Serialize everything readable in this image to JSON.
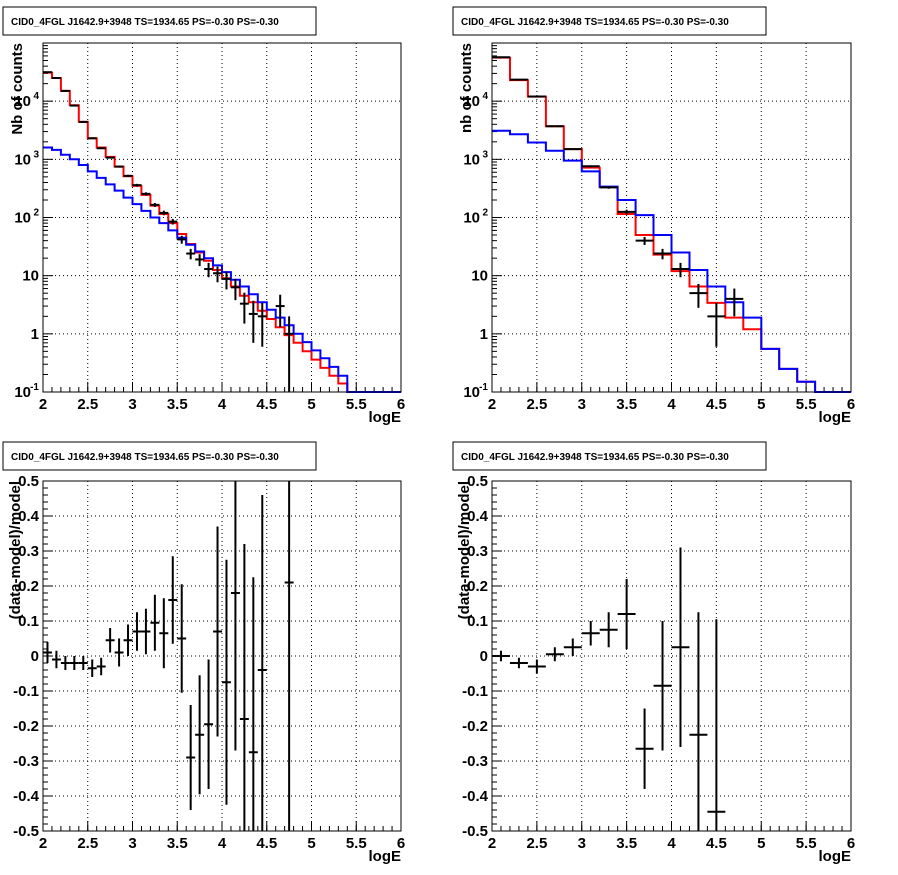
{
  "page": {
    "title_text": "CID0_4FGL J1642.9+3948 TS=1934.65 PS=-0.30 PS=-0.30"
  },
  "chart_data": [
    {
      "id": "counts-fine",
      "type": "line",
      "title": "CID0_4FGL J1642.9+3948 TS=1934.65 PS=-0.30 PS=-0.30",
      "xlabel": "logE",
      "ylabel": "Nb of counts",
      "xlim": [
        2,
        6
      ],
      "ylim": [
        0.1,
        100000
      ],
      "yscale": "log",
      "grid": true,
      "xticks": [
        "2",
        "2.5",
        "3",
        "3.5",
        "4",
        "4.5",
        "5",
        "5.5",
        "6"
      ],
      "yticks": [
        {
          "v": 0.1,
          "t": "10",
          "sup": "-1"
        },
        {
          "v": 1,
          "t": "1",
          "sup": ""
        },
        {
          "v": 10,
          "t": "10",
          "sup": ""
        },
        {
          "v": 100,
          "t": "10",
          "sup": "2"
        },
        {
          "v": 1000,
          "t": "10",
          "sup": "3"
        },
        {
          "v": 10000,
          "t": "10",
          "sup": "4"
        }
      ],
      "series": [
        {
          "color": "#ff0000",
          "style": "step",
          "bin_edges": [
            2,
            2.1,
            2.2,
            2.3,
            2.4,
            2.5,
            2.6,
            2.7,
            2.8,
            2.9,
            3.0,
            3.1,
            3.2,
            3.3,
            3.4,
            3.5,
            3.6,
            3.7,
            3.8,
            3.9,
            4.0,
            4.1,
            4.2,
            4.3,
            4.4,
            4.5,
            4.6,
            4.7,
            4.8,
            4.9,
            5.0,
            5.1,
            5.2,
            5.3,
            5.4,
            5.5,
            5.6,
            5.7,
            5.8,
            5.9,
            6.0
          ],
          "values": [
            31000,
            25000,
            15000,
            8500,
            4400,
            2300,
            1600,
            1100,
            750,
            510,
            350,
            245,
            160,
            115,
            80,
            52,
            35,
            25,
            18,
            12.5,
            9,
            6.5,
            4.5,
            3.5,
            2.5,
            1.8,
            1.3,
            0.95,
            0.7,
            0.5,
            0.36,
            0.26,
            0.19,
            0.14,
            0.1,
            0.1,
            0.1,
            0.1,
            0.1,
            0.1
          ]
        },
        {
          "color": "#0000ff",
          "style": "step",
          "bin_edges": [
            2,
            2.1,
            2.2,
            2.3,
            2.4,
            2.5,
            2.6,
            2.7,
            2.8,
            2.9,
            3.0,
            3.1,
            3.2,
            3.3,
            3.4,
            3.5,
            3.6,
            3.7,
            3.8,
            3.9,
            4.0,
            4.1,
            4.2,
            4.3,
            4.4,
            4.5,
            4.6,
            4.7,
            4.8,
            4.9,
            5.0,
            5.1,
            5.2,
            5.3,
            5.4,
            5.5,
            5.6,
            5.7,
            5.8,
            5.9,
            6.0
          ],
          "values": [
            1600,
            1450,
            1200,
            1000,
            800,
            620,
            480,
            370,
            290,
            220,
            170,
            130,
            100,
            80,
            60,
            45,
            34,
            26,
            20,
            15,
            11.5,
            8.5,
            6.5,
            4.8,
            3.5,
            2.6,
            1.9,
            1.4,
            1.0,
            0.72,
            0.52,
            0.38,
            0.27,
            0.19,
            0.1,
            0.1,
            0.1,
            0.1,
            0.1,
            0.1
          ]
        },
        {
          "color": "#000000",
          "style": "points",
          "x": [
            2.05,
            2.15,
            2.25,
            2.35,
            2.45,
            2.55,
            2.65,
            2.75,
            2.85,
            2.95,
            3.05,
            3.15,
            3.25,
            3.35,
            3.45,
            3.55,
            3.65,
            3.75,
            3.85,
            3.95,
            4.05,
            4.15,
            4.25,
            4.35,
            4.45,
            4.55,
            4.65,
            4.75
          ],
          "values": [
            31500,
            25000,
            15000,
            8400,
            4400,
            2300,
            1550,
            1070,
            750,
            520,
            360,
            255,
            165,
            120,
            85,
            42,
            24,
            19,
            13,
            11,
            8.8,
            6.3,
            3.3,
            2.2,
            2.0,
            0,
            3.0,
            1.0
          ],
          "errors": [
            178,
            158,
            122,
            92,
            66,
            48,
            39,
            33,
            27,
            23,
            19,
            16,
            13,
            11,
            9.2,
            6.5,
            4.9,
            4.4,
            3.6,
            3.3,
            3.0,
            2.5,
            1.8,
            1.5,
            1.4,
            0,
            1.7,
            1.0
          ]
        }
      ]
    },
    {
      "id": "counts-coarse",
      "type": "line",
      "title": "CID0_4FGL J1642.9+3948 TS=1934.65 PS=-0.30 PS=-0.30",
      "xlabel": "logE",
      "ylabel": "nb of counts",
      "xlim": [
        2,
        6
      ],
      "ylim": [
        0.1,
        100000
      ],
      "yscale": "log",
      "grid": true,
      "xticks": [
        "2",
        "2.5",
        "3",
        "3.5",
        "4",
        "4.5",
        "5",
        "5.5",
        "6"
      ],
      "yticks": [
        {
          "v": 0.1,
          "t": "10",
          "sup": "-1"
        },
        {
          "v": 1,
          "t": "1",
          "sup": ""
        },
        {
          "v": 10,
          "t": "10",
          "sup": ""
        },
        {
          "v": 100,
          "t": "10",
          "sup": "2"
        },
        {
          "v": 1000,
          "t": "10",
          "sup": "3"
        },
        {
          "v": 10000,
          "t": "10",
          "sup": "4"
        }
      ],
      "series": [
        {
          "color": "#ff0000",
          "style": "step",
          "bin_edges": [
            2,
            2.2,
            2.4,
            2.6,
            2.8,
            3.0,
            3.2,
            3.4,
            3.6,
            3.8,
            4.0,
            4.2,
            4.4,
            4.6,
            4.8,
            5.0,
            5.2,
            5.4,
            5.6,
            5.8,
            6.0
          ],
          "values": [
            56000,
            23000,
            12000,
            3700,
            1500,
            720,
            330,
            115,
            50,
            23,
            12,
            6.5,
            3.4,
            1.9,
            1.2,
            0.55,
            0.25,
            0.15,
            0.1,
            0.1
          ]
        },
        {
          "color": "#0000ff",
          "style": "step",
          "bin_edges": [
            2,
            2.2,
            2.4,
            2.6,
            2.8,
            3.0,
            3.2,
            3.4,
            3.6,
            3.8,
            4.0,
            4.2,
            4.4,
            4.6,
            4.8,
            5.0,
            5.2,
            5.4,
            5.6,
            5.8,
            6.0
          ],
          "values": [
            3100,
            2700,
            1950,
            1400,
            950,
            620,
            340,
            200,
            110,
            50,
            25,
            12.5,
            6.5,
            3.5,
            1.9,
            0.55,
            0.25,
            0.15,
            0.1,
            0.1
          ]
        },
        {
          "color": "#000000",
          "style": "points",
          "x": [
            2.1,
            2.3,
            2.5,
            2.7,
            2.9,
            3.1,
            3.3,
            3.5,
            3.7,
            3.9,
            4.1,
            4.3,
            4.5,
            4.7
          ],
          "values": [
            57000,
            23500,
            12000,
            3700,
            1500,
            760,
            330,
            125,
            40,
            24,
            13,
            5,
            2,
            4
          ],
          "errors": [
            239,
            153,
            110,
            61,
            39,
            28,
            18,
            11,
            6.3,
            4.9,
            3.6,
            2.2,
            1.4,
            2.0
          ]
        }
      ]
    },
    {
      "id": "residuals-fine",
      "type": "scatter",
      "title": "CID0_4FGL J1642.9+3948 TS=1934.65 PS=-0.30 PS=-0.30",
      "xlabel": "logE",
      "ylabel": "(data-model)/model",
      "xlim": [
        2,
        6
      ],
      "ylim": [
        -0.5,
        0.5
      ],
      "grid": true,
      "xticks": [
        "2",
        "2.5",
        "3",
        "3.5",
        "4",
        "4.5",
        "5",
        "5.5",
        "6"
      ],
      "yticks": [
        "-0.5",
        "-0.4",
        "-0.3",
        "-0.2",
        "-0.1",
        "0",
        "0.1",
        "0.2",
        "0.3",
        "0.4",
        "0.5"
      ],
      "points": {
        "x": [
          2.05,
          2.15,
          2.25,
          2.35,
          2.45,
          2.55,
          2.65,
          2.75,
          2.85,
          2.95,
          3.05,
          3.15,
          3.25,
          3.35,
          3.45,
          3.55,
          3.65,
          3.75,
          3.85,
          3.95,
          4.05,
          4.15,
          4.25,
          4.35,
          4.45,
          4.75
        ],
        "y": [
          0.01,
          -0.01,
          -0.02,
          -0.02,
          -0.02,
          -0.035,
          -0.03,
          0.045,
          0.01,
          0.045,
          0.07,
          0.07,
          0.095,
          0.065,
          0.16,
          0.05,
          -0.29,
          -0.225,
          -0.195,
          0.07,
          -0.075,
          0.18,
          -0.18,
          -0.275,
          -0.04,
          0.21
        ],
        "yerr": [
          0.03,
          0.025,
          0.02,
          0.02,
          0.02,
          0.025,
          0.025,
          0.035,
          0.04,
          0.045,
          0.055,
          0.065,
          0.08,
          0.1,
          0.125,
          0.155,
          0.15,
          0.17,
          0.185,
          0.3,
          0.35,
          0.45,
          0.5,
          0.5,
          0.5,
          1.0
        ]
      }
    },
    {
      "id": "residuals-coarse",
      "type": "scatter",
      "title": "CID0_4FGL J1642.9+3948 TS=1934.65 PS=-0.30 PS=-0.30",
      "xlabel": "logE",
      "ylabel": "(data-model)/model",
      "xlim": [
        2,
        6
      ],
      "ylim": [
        -0.5,
        0.5
      ],
      "grid": true,
      "xticks": [
        "2",
        "2.5",
        "3",
        "3.5",
        "4",
        "4.5",
        "5",
        "5.5",
        "6"
      ],
      "yticks": [
        "-0.5",
        "-0.4",
        "-0.3",
        "-0.2",
        "-0.1",
        "0",
        "0.1",
        "0.2",
        "0.3",
        "0.4",
        "0.5"
      ],
      "points": {
        "x": [
          2.1,
          2.3,
          2.5,
          2.7,
          2.9,
          3.1,
          3.3,
          3.5,
          3.7,
          3.9,
          4.1,
          4.3,
          4.5
        ],
        "y": [
          0.0,
          -0.02,
          -0.03,
          0.005,
          0.025,
          0.065,
          0.075,
          0.12,
          -0.265,
          -0.085,
          0.025,
          -0.225,
          -0.445
        ],
        "yerr": [
          0.015,
          0.015,
          0.02,
          0.02,
          0.025,
          0.035,
          0.05,
          0.1,
          0.115,
          0.185,
          0.285,
          0.35,
          0.55
        ]
      }
    }
  ]
}
